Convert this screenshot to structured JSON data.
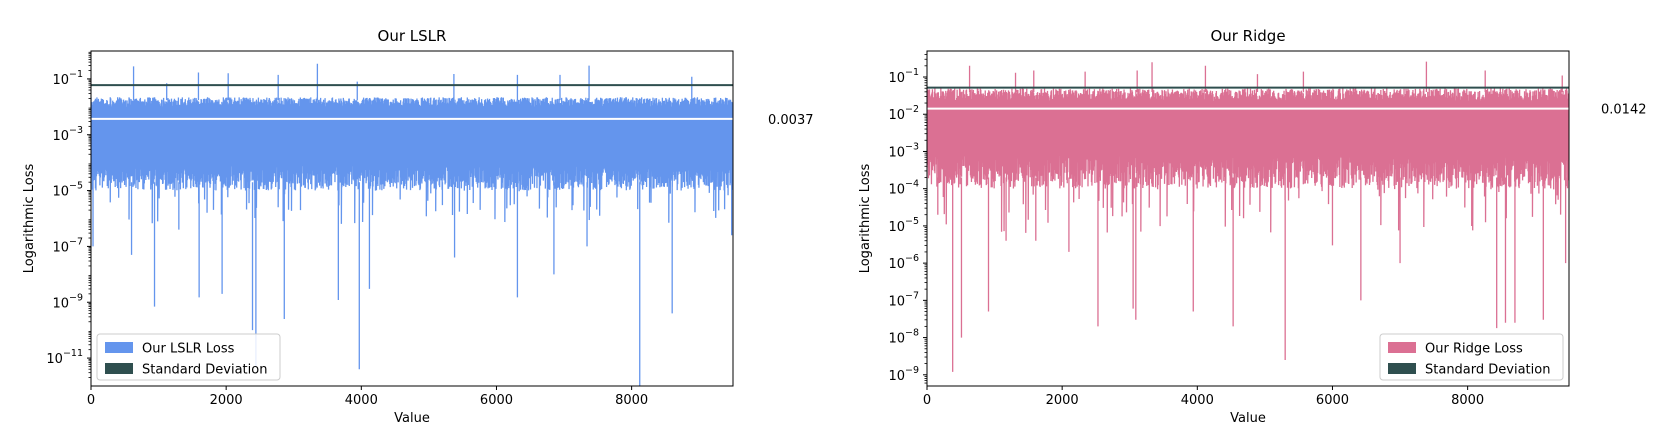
{
  "chart_data": [
    {
      "type": "line",
      "title": "Our LSLR",
      "xlabel": "Value",
      "ylabel": "Logarithmic Loss",
      "yscale": "log",
      "xlim": [
        0,
        9500
      ],
      "ylim": [
        1e-12,
        1
      ],
      "xticks": [
        0,
        2000,
        4000,
        6000,
        8000
      ],
      "xtick_labels": [
        "0",
        "2000",
        "4000",
        "6000",
        "8000"
      ],
      "yticks": [
        1e-11,
        1e-09,
        1e-07,
        1e-05,
        0.001,
        0.1
      ],
      "ytick_labels": [
        {
          "base": "10",
          "exp": "−11"
        },
        {
          "base": "10",
          "exp": "−9"
        },
        {
          "base": "10",
          "exp": "−7"
        },
        {
          "base": "10",
          "exp": "−5"
        },
        {
          "base": "10",
          "exp": "−3"
        },
        {
          "base": "10",
          "exp": "−1"
        }
      ],
      "series_color": "#6495ED",
      "std_line": {
        "value": 0.06,
        "color": "#2F4F4F"
      },
      "mean_line": {
        "value": 0.0037,
        "color": "#ffffff",
        "label": "0.0037"
      },
      "legend": {
        "position": "lower left",
        "entries": [
          {
            "label": "Our LSLR Loss",
            "color": "#6495ED"
          },
          {
            "label": "Standard Deviation",
            "color": "#2F4F4F"
          }
        ]
      },
      "grid": false,
      "series": [
        {
          "n_points": 9500,
          "band_y": [
            1e-05,
            0.022
          ],
          "spikes_up": [
            [
              630,
              0.28
            ],
            [
              1590,
              0.17
            ],
            [
              2030,
              0.16
            ],
            [
              2770,
              0.14
            ],
            [
              3350,
              0.35
            ],
            [
              5370,
              0.15
            ],
            [
              6310,
              0.14
            ],
            [
              6940,
              0.14
            ],
            [
              7370,
              0.3
            ],
            [
              8890,
              0.12
            ],
            [
              3940,
              0.08
            ],
            [
              1120,
              0.07
            ]
          ],
          "spikes_down": [
            [
              30,
              1e-07
            ],
            [
              600,
              5e-08
            ],
            [
              940,
              7e-10
            ],
            [
              1600,
              1.5e-09
            ],
            [
              1940,
              2e-09
            ],
            [
              2390,
              1e-10
            ],
            [
              2440,
              5e-12
            ],
            [
              2860,
              2.5e-10
            ],
            [
              3660,
              1.2e-09
            ],
            [
              3970,
              4e-12
            ],
            [
              4120,
              3e-09
            ],
            [
              5380,
              4e-08
            ],
            [
              6310,
              1.5e-09
            ],
            [
              6850,
              1e-08
            ],
            [
              7340,
              1e-07
            ],
            [
              8120,
              1e-12
            ],
            [
              8600,
              4e-10
            ],
            [
              9520,
              2e-11
            ],
            [
              9480,
              2.5e-07
            ],
            [
              5200,
              3e-06
            ],
            [
              3100,
              2e-06
            ],
            [
              1300,
              4e-07
            ]
          ]
        }
      ]
    },
    {
      "type": "line",
      "title": "Our Ridge",
      "xlabel": "Value",
      "ylabel": "Logarithmic Loss",
      "yscale": "log",
      "xlim": [
        0,
        9500
      ],
      "ylim": [
        5e-10,
        0.5
      ],
      "xticks": [
        0,
        2000,
        4000,
        6000,
        8000
      ],
      "xtick_labels": [
        "0",
        "2000",
        "4000",
        "6000",
        "8000"
      ],
      "yticks": [
        1e-09,
        1e-08,
        1e-07,
        1e-06,
        1e-05,
        0.0001,
        0.001,
        0.01,
        0.1
      ],
      "ytick_labels": [
        {
          "base": "10",
          "exp": "−9"
        },
        {
          "base": "10",
          "exp": "−8"
        },
        {
          "base": "10",
          "exp": "−7"
        },
        {
          "base": "10",
          "exp": "−6"
        },
        {
          "base": "10",
          "exp": "−5"
        },
        {
          "base": "10",
          "exp": "−4"
        },
        {
          "base": "10",
          "exp": "−3"
        },
        {
          "base": "10",
          "exp": "−2"
        },
        {
          "base": "10",
          "exp": "−1"
        }
      ],
      "series_color": "#DB7093",
      "std_line": {
        "value": 0.052,
        "color": "#2F4F4F"
      },
      "mean_line": {
        "value": 0.0142,
        "color": "#ffffff",
        "label": "0.0142"
      },
      "legend": {
        "position": "lower right",
        "entries": [
          {
            "label": "Our Ridge Loss",
            "color": "#DB7093"
          },
          {
            "label": "Standard Deviation",
            "color": "#2F4F4F"
          }
        ]
      },
      "grid": false,
      "series": [
        {
          "n_points": 9500,
          "band_y": [
            0.0001,
            0.05
          ],
          "spikes_up": [
            [
              630,
              0.2
            ],
            [
              1310,
              0.13
            ],
            [
              1580,
              0.15
            ],
            [
              2340,
              0.14
            ],
            [
              3110,
              0.15
            ],
            [
              3330,
              0.25
            ],
            [
              4120,
              0.2
            ],
            [
              4890,
              0.12
            ],
            [
              5570,
              0.14
            ],
            [
              7390,
              0.26
            ],
            [
              8260,
              0.15
            ],
            [
              9400,
              0.11
            ]
          ],
          "spikes_down": [
            [
              160,
              2e-05
            ],
            [
              380,
              1.2e-09
            ],
            [
              510,
              1e-08
            ],
            [
              910,
              5e-08
            ],
            [
              1170,
              4e-06
            ],
            [
              1610,
              4e-06
            ],
            [
              2530,
              2e-08
            ],
            [
              3050,
              6e-08
            ],
            [
              3090,
              3e-08
            ],
            [
              3940,
              5e-08
            ],
            [
              4530,
              2e-08
            ],
            [
              5300,
              2.5e-09
            ],
            [
              6420,
              1e-07
            ],
            [
              7000,
              1e-06
            ],
            [
              8430,
              1.8e-08
            ],
            [
              8560,
              2.5e-08
            ],
            [
              8700,
              2.5e-08
            ],
            [
              9120,
              3e-08
            ],
            [
              9450,
              1e-06
            ],
            [
              2100,
              2e-06
            ],
            [
              6000,
              3e-06
            ]
          ]
        }
      ]
    }
  ]
}
